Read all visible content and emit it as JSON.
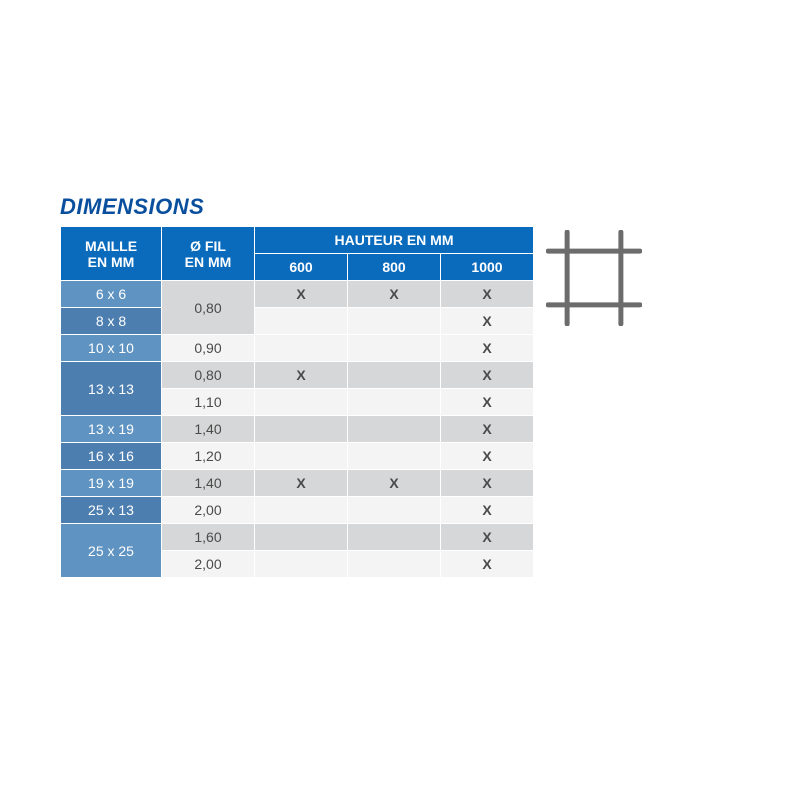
{
  "title": "DIMENSIONS",
  "title_color": "#0a4f9e",
  "colors": {
    "header_bg": "#0a6bbd",
    "header_bg_2": "#0a6bbd",
    "label_bg_light": "#5f93c1",
    "label_bg_dark": "#4c7fb0",
    "cell_bg_light": "#f4f4f4",
    "cell_bg_dark": "#d6d7d8",
    "text_dark": "#4a4a4a",
    "white": "#ffffff",
    "icon_stroke": "#6c6c6c"
  },
  "headers": {
    "maille_l1": "MAILLE",
    "maille_l2": "EN MM",
    "fil_l1": "Ø FIL",
    "fil_l2": "EN MM",
    "hauteur": "HAUTEUR EN MM",
    "h600": "600",
    "h800": "800",
    "h1000": "1000"
  },
  "mark": "X",
  "rows": [
    {
      "maille": "6 x 6",
      "maille_span": 1,
      "shade": "light",
      "fil": "0,80",
      "fil_span": 2,
      "fil_shade": "dark",
      "h600": true,
      "h800": true,
      "h1000": true
    },
    {
      "maille": "8 x 8",
      "maille_span": 1,
      "shade": "dark",
      "fil": "",
      "fil_span": 0,
      "fil_shade": "",
      "h600": false,
      "h800": false,
      "h1000": true
    },
    {
      "maille": "10 x 10",
      "maille_span": 1,
      "shade": "light",
      "fil": "0,90",
      "fil_span": 1,
      "fil_shade": "light",
      "h600": false,
      "h800": false,
      "h1000": true
    },
    {
      "maille": "13 x 13",
      "maille_span": 2,
      "shade": "dark",
      "fil": "0,80",
      "fil_span": 1,
      "fil_shade": "dark",
      "h600": true,
      "h800": false,
      "h1000": true
    },
    {
      "maille": "",
      "maille_span": 0,
      "shade": "",
      "fil": "1,10",
      "fil_span": 1,
      "fil_shade": "light",
      "h600": false,
      "h800": false,
      "h1000": true
    },
    {
      "maille": "13 x 19",
      "maille_span": 1,
      "shade": "light",
      "fil": "1,40",
      "fil_span": 1,
      "fil_shade": "dark",
      "h600": false,
      "h800": false,
      "h1000": true
    },
    {
      "maille": "16 x 16",
      "maille_span": 1,
      "shade": "dark",
      "fil": "1,20",
      "fil_span": 1,
      "fil_shade": "light",
      "h600": false,
      "h800": false,
      "h1000": true
    },
    {
      "maille": "19 x 19",
      "maille_span": 1,
      "shade": "light",
      "fil": "1,40",
      "fil_span": 1,
      "fil_shade": "dark",
      "h600": true,
      "h800": true,
      "h1000": true
    },
    {
      "maille": "25 x 13",
      "maille_span": 1,
      "shade": "dark",
      "fil": "2,00",
      "fil_span": 1,
      "fil_shade": "light",
      "h600": false,
      "h800": false,
      "h1000": true
    },
    {
      "maille": "25 x 25",
      "maille_span": 2,
      "shade": "light",
      "fil": "1,60",
      "fil_span": 1,
      "fil_shade": "dark",
      "h600": false,
      "h800": false,
      "h1000": true
    },
    {
      "maille": "",
      "maille_span": 0,
      "shade": "",
      "fil": "2,00",
      "fil_span": 1,
      "fil_shade": "light",
      "h600": false,
      "h800": false,
      "h1000": true
    }
  ],
  "icon": {
    "size": 96,
    "stroke_width": 5
  }
}
